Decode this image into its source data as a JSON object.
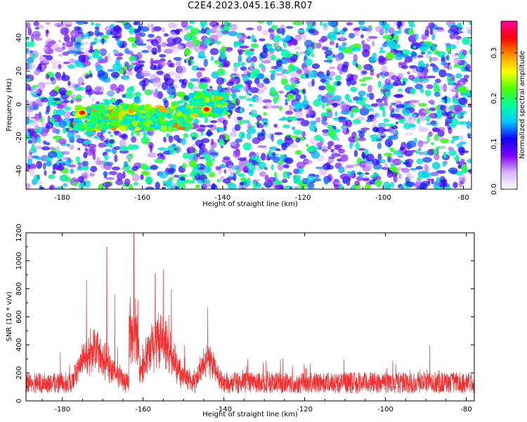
{
  "title": "C2E4.2023.045.16.38.R07",
  "chart_data": [
    {
      "type": "heatmap",
      "title": "C2E4.2023.045.16.38.R07",
      "xlabel": "Height of straight line (km)",
      "ylabel": "Frequency (Hz)",
      "xlim": [
        -189,
        -78
      ],
      "ylim": [
        -51,
        50
      ],
      "x_ticks": [
        -180,
        -160,
        -140,
        -120,
        -100,
        -80
      ],
      "y_ticks": [
        -40,
        -20,
        0,
        20,
        40
      ],
      "colorbar": {
        "label": "Normalized spectral amplitude",
        "range": [
          0,
          0.37
        ],
        "ticks": [
          0.0,
          0.1,
          0.2,
          0.3
        ],
        "colormap": [
          "#ffffff",
          "#d9b3ff",
          "#7b00ff",
          "#1400ff",
          "#00c8ff",
          "#00ff9c",
          "#4dff00",
          "#ffff00",
          "#ff9000",
          "#ff0000",
          "#ff00a0"
        ]
      },
      "features": [
        {
          "x_range": [
            -178,
            -148
          ],
          "y_center": -8,
          "note_level": "elevated"
        },
        {
          "x_range": [
            -148,
            -139
          ],
          "y_center": 0,
          "note_level": "elevated"
        },
        {
          "peak_x": -175,
          "peak_y": -5,
          "level": 0.33
        },
        {
          "peak_x": -144,
          "peak_y": -3,
          "level": 0.34
        }
      ]
    },
    {
      "type": "line",
      "xlabel": "Height of straight line (km)",
      "ylabel": "SNR (10 * v/v)",
      "xlim": [
        -189,
        -78
      ],
      "ylim": [
        0,
        1200
      ],
      "x_ticks": [
        -180,
        -160,
        -140,
        -120,
        -100,
        -80
      ],
      "y_ticks": [
        0,
        200,
        400,
        600,
        800,
        1000,
        1200
      ],
      "color": "#f03030",
      "baseline": 130,
      "peaks": [
        {
          "x": -174,
          "value": 860
        },
        {
          "x": -169,
          "value": 1100
        },
        {
          "x": -167,
          "value": 760
        },
        {
          "x": -162.3,
          "value": 1200
        },
        {
          "x": -157,
          "value": 910
        },
        {
          "x": -155,
          "value": 940
        },
        {
          "x": -153,
          "value": 800
        },
        {
          "x": -144,
          "value": 670
        },
        {
          "x": -89,
          "value": 400
        }
      ]
    }
  ]
}
